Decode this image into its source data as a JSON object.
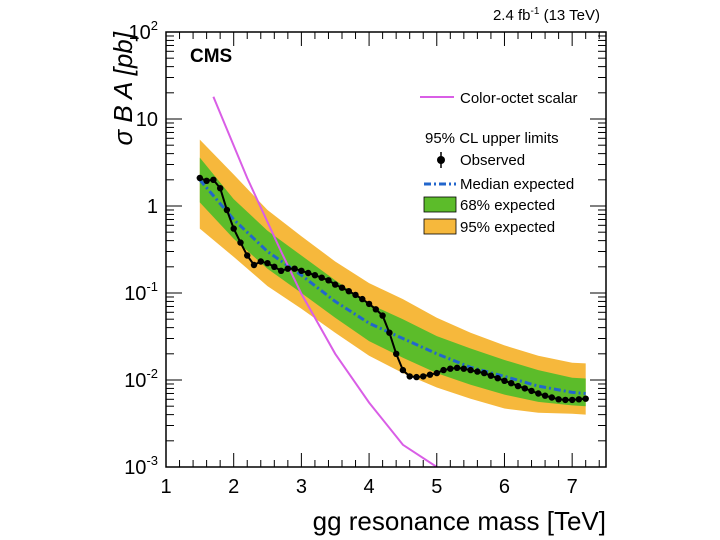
{
  "chart_data": {
    "type": "line",
    "experiment_label": "CMS",
    "lumi_label": "2.4 fb",
    "lumi_exponent": "-1",
    "lumi_energy": " (13 TeV)",
    "xlabel": "gg resonance mass [TeV]",
    "ylabel": "σ B A [pb]",
    "xlim": [
      1,
      7.5
    ],
    "ylim": [
      0.001,
      100
    ],
    "yscale": "log",
    "x_ticks": [
      "1",
      "2",
      "3",
      "4",
      "5",
      "6",
      "7"
    ],
    "y_ticks": [
      {
        "base": "10",
        "exp": "-3",
        "value": 0.001
      },
      {
        "base": "10",
        "exp": "-2",
        "value": 0.01
      },
      {
        "base": "10",
        "exp": "-1",
        "value": 0.1
      },
      {
        "base": "1",
        "exp": "",
        "value": 1
      },
      {
        "base": "10",
        "exp": "",
        "value": 10
      },
      {
        "base": "10",
        "exp": "2",
        "value": 100
      }
    ],
    "legend": {
      "placement": "top-right",
      "signal_label": "Color-octet scalar",
      "header": "95% CL upper limits",
      "observed_label": "Observed",
      "median_label": "Median expected",
      "band68_label": "68% expected",
      "band95_label": "95% expected"
    },
    "colors": {
      "observed": "#000000",
      "median": "#2266cc",
      "band68": "#5cbc2a",
      "band95": "#f6b83c",
      "signal": "#d95ee6"
    },
    "series": [
      {
        "name": "Color-octet scalar",
        "x": [
          1.7,
          2.2,
          2.7,
          3.0,
          3.5,
          4.0,
          4.5,
          5.0
        ],
        "y": [
          18,
          2.1,
          0.3,
          0.098,
          0.02,
          0.0055,
          0.0018,
          0.001
        ]
      },
      {
        "name": "Observed",
        "x": [
          1.5,
          1.6,
          1.7,
          1.8,
          1.9,
          2.0,
          2.1,
          2.2,
          2.3,
          2.4,
          2.5,
          2.6,
          2.7,
          2.8,
          2.9,
          3.0,
          3.1,
          3.2,
          3.3,
          3.4,
          3.5,
          3.6,
          3.7,
          3.8,
          3.9,
          4.0,
          4.1,
          4.2,
          4.3,
          4.4,
          4.5,
          4.6,
          4.7,
          4.8,
          4.9,
          5.0,
          5.1,
          5.2,
          5.3,
          5.4,
          5.5,
          5.6,
          5.7,
          5.8,
          5.9,
          6.0,
          6.1,
          6.2,
          6.3,
          6.4,
          6.5,
          6.6,
          6.7,
          6.8,
          6.9,
          7.0,
          7.1,
          7.2
        ],
        "y": [
          2.1,
          1.95,
          2.0,
          1.6,
          0.9,
          0.55,
          0.38,
          0.27,
          0.21,
          0.23,
          0.22,
          0.2,
          0.18,
          0.19,
          0.19,
          0.18,
          0.17,
          0.16,
          0.15,
          0.14,
          0.125,
          0.115,
          0.105,
          0.095,
          0.085,
          0.075,
          0.065,
          0.055,
          0.035,
          0.02,
          0.013,
          0.011,
          0.0108,
          0.011,
          0.0115,
          0.012,
          0.013,
          0.0135,
          0.0138,
          0.0135,
          0.013,
          0.0125,
          0.012,
          0.0112,
          0.0105,
          0.0098,
          0.0092,
          0.0085,
          0.008,
          0.0075,
          0.007,
          0.0066,
          0.0063,
          0.006,
          0.0059,
          0.0059,
          0.006,
          0.0061
        ]
      },
      {
        "name": "Median expected",
        "x": [
          1.5,
          2.0,
          2.5,
          3.0,
          3.5,
          4.0,
          4.5,
          5.0,
          5.5,
          6.0,
          6.5,
          7.0,
          7.2
        ],
        "y": [
          2.0,
          0.7,
          0.3,
          0.16,
          0.08,
          0.045,
          0.03,
          0.02,
          0.014,
          0.011,
          0.0085,
          0.0072,
          0.007
        ]
      },
      {
        "name": "68% expected",
        "x": [
          1.5,
          2.0,
          2.5,
          3.0,
          3.5,
          4.0,
          4.5,
          5.0,
          5.5,
          6.0,
          6.5,
          7.0,
          7.2
        ],
        "low": [
          1.1,
          0.42,
          0.19,
          0.1,
          0.052,
          0.028,
          0.018,
          0.012,
          0.0088,
          0.0068,
          0.0056,
          0.0051,
          0.005
        ],
        "high": [
          3.6,
          1.2,
          0.52,
          0.27,
          0.14,
          0.075,
          0.05,
          0.032,
          0.023,
          0.017,
          0.013,
          0.0106,
          0.0104
        ]
      },
      {
        "name": "95% expected",
        "x": [
          1.5,
          2.0,
          2.5,
          3.0,
          3.5,
          4.0,
          4.5,
          5.0,
          5.5,
          6.0,
          6.5,
          7.0,
          7.2
        ],
        "low": [
          0.55,
          0.26,
          0.12,
          0.066,
          0.035,
          0.019,
          0.012,
          0.0082,
          0.0061,
          0.0047,
          0.0042,
          0.0041,
          0.004
        ],
        "high": [
          5.8,
          2.3,
          0.9,
          0.45,
          0.23,
          0.13,
          0.085,
          0.052,
          0.035,
          0.025,
          0.019,
          0.0158,
          0.0155
        ]
      }
    ]
  }
}
